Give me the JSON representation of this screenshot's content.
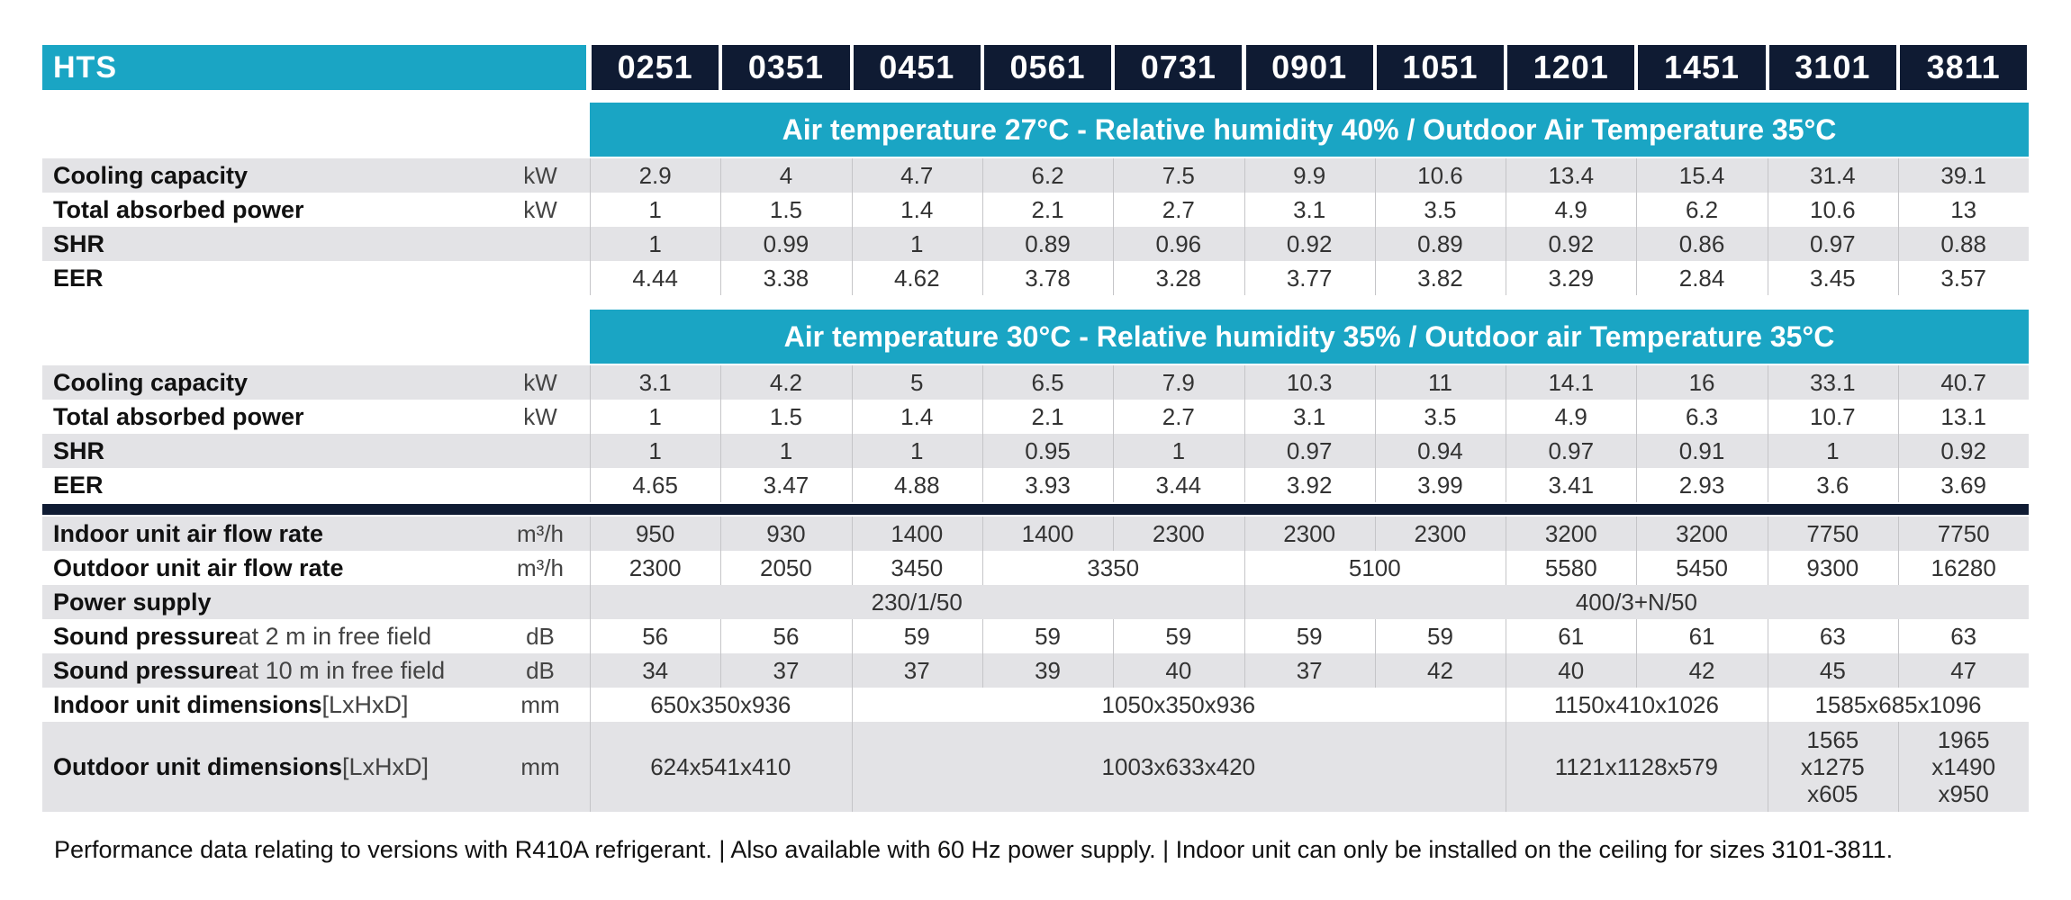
{
  "brand": "HTS",
  "models": [
    "0251",
    "0351",
    "0451",
    "0561",
    "0731",
    "0901",
    "1051",
    "1201",
    "1451",
    "3101",
    "3811"
  ],
  "sections": [
    {
      "title": "Air temperature 27°C - Relative humidity 40% / Outdoor Air Temperature 35°C",
      "rows": [
        {
          "label": "Cooling capacity",
          "unit": "kW",
          "values": [
            "2.9",
            "4",
            "4.7",
            "6.2",
            "7.5",
            "9.9",
            "10.6",
            "13.4",
            "15.4",
            "31.4",
            "39.1"
          ]
        },
        {
          "label": "Total absorbed power",
          "unit": "kW",
          "values": [
            "1",
            "1.5",
            "1.4",
            "2.1",
            "2.7",
            "3.1",
            "3.5",
            "4.9",
            "6.2",
            "10.6",
            "13"
          ]
        },
        {
          "label": "SHR",
          "unit": "",
          "values": [
            "1",
            "0.99",
            "1",
            "0.89",
            "0.96",
            "0.92",
            "0.89",
            "0.92",
            "0.86",
            "0.97",
            "0.88"
          ]
        },
        {
          "label": "EER",
          "unit": "",
          "values": [
            "4.44",
            "3.38",
            "4.62",
            "3.78",
            "3.28",
            "3.77",
            "3.82",
            "3.29",
            "2.84",
            "3.45",
            "3.57"
          ]
        }
      ]
    },
    {
      "title": "Air temperature 30°C - Relative humidity 35% / Outdoor air Temperature 35°C",
      "rows": [
        {
          "label": "Cooling capacity",
          "unit": "kW",
          "values": [
            "3.1",
            "4.2",
            "5",
            "6.5",
            "7.9",
            "10.3",
            "11",
            "14.1",
            "16",
            "33.1",
            "40.7"
          ]
        },
        {
          "label": "Total absorbed power",
          "unit": "kW",
          "values": [
            "1",
            "1.5",
            "1.4",
            "2.1",
            "2.7",
            "3.1",
            "3.5",
            "4.9",
            "6.3",
            "10.7",
            "13.1"
          ]
        },
        {
          "label": "SHR",
          "unit": "",
          "values": [
            "1",
            "1",
            "1",
            "0.95",
            "1",
            "0.97",
            "0.94",
            "0.97",
            "0.91",
            "1",
            "0.92"
          ]
        },
        {
          "label": "EER",
          "unit": "",
          "values": [
            "4.65",
            "3.47",
            "4.88",
            "3.93",
            "3.44",
            "3.92",
            "3.99",
            "3.41",
            "2.93",
            "3.6",
            "3.69"
          ]
        }
      ]
    }
  ],
  "specs": [
    {
      "label": "Indoor unit air flow rate",
      "unit": "m³/h",
      "cells": [
        {
          "value": "950",
          "span": 1
        },
        {
          "value": "930",
          "span": 1
        },
        {
          "value": "1400",
          "span": 1
        },
        {
          "value": "1400",
          "span": 1
        },
        {
          "value": "2300",
          "span": 1
        },
        {
          "value": "2300",
          "span": 1
        },
        {
          "value": "2300",
          "span": 1
        },
        {
          "value": "3200",
          "span": 1
        },
        {
          "value": "3200",
          "span": 1
        },
        {
          "value": "7750",
          "span": 1
        },
        {
          "value": "7750",
          "span": 1
        }
      ]
    },
    {
      "label": "Outdoor unit air flow rate",
      "unit": "m³/h",
      "cells": [
        {
          "value": "2300",
          "span": 1
        },
        {
          "value": "2050",
          "span": 1
        },
        {
          "value": "3450",
          "span": 1
        },
        {
          "value": "3350",
          "span": 2
        },
        {
          "value": "5100",
          "span": 2
        },
        {
          "value": "5580",
          "span": 1
        },
        {
          "value": "5450",
          "span": 1
        },
        {
          "value": "9300",
          "span": 1
        },
        {
          "value": "16280",
          "span": 1
        }
      ]
    },
    {
      "label": "Power supply",
      "unit": "",
      "cells": [
        {
          "value": "230/1/50",
          "span": 5
        },
        {
          "value": "400/3+N/50",
          "span": 6
        }
      ]
    },
    {
      "label": "Sound pressure",
      "label_rest": " at 2 m in free field",
      "unit": "dB",
      "cells": [
        {
          "value": "56",
          "span": 1
        },
        {
          "value": "56",
          "span": 1
        },
        {
          "value": "59",
          "span": 1
        },
        {
          "value": "59",
          "span": 1
        },
        {
          "value": "59",
          "span": 1
        },
        {
          "value": "59",
          "span": 1
        },
        {
          "value": "59",
          "span": 1
        },
        {
          "value": "61",
          "span": 1
        },
        {
          "value": "61",
          "span": 1
        },
        {
          "value": "63",
          "span": 1
        },
        {
          "value": "63",
          "span": 1
        }
      ]
    },
    {
      "label": "Sound pressure",
      "label_rest": " at 10 m in free field",
      "unit": "dB",
      "cells": [
        {
          "value": "34",
          "span": 1
        },
        {
          "value": "37",
          "span": 1
        },
        {
          "value": "37",
          "span": 1
        },
        {
          "value": "39",
          "span": 1
        },
        {
          "value": "40",
          "span": 1
        },
        {
          "value": "37",
          "span": 1
        },
        {
          "value": "42",
          "span": 1
        },
        {
          "value": "40",
          "span": 1
        },
        {
          "value": "42",
          "span": 1
        },
        {
          "value": "45",
          "span": 1
        },
        {
          "value": "47",
          "span": 1
        }
      ]
    },
    {
      "label": "Indoor unit dimensions",
      "label_rest": " [LxHxD]",
      "unit": "mm",
      "cells": [
        {
          "value": "650x350x936",
          "span": 2
        },
        {
          "value": "1050x350x936",
          "span": 5
        },
        {
          "value": "1150x410x1026",
          "span": 2
        },
        {
          "value": "1585x685x1096",
          "span": 2
        }
      ]
    },
    {
      "label": "Outdoor unit dimensions",
      "label_rest": " [LxHxD]",
      "unit": "mm",
      "cells": [
        {
          "value": "624x541x410",
          "span": 2
        },
        {
          "value": "1003x633x420",
          "span": 5
        },
        {
          "value": "1121x1128x579",
          "span": 2
        },
        {
          "lines": [
            "1565",
            "x1275",
            "x605"
          ],
          "span": 1
        },
        {
          "lines": [
            "1965",
            "x1490",
            "x950"
          ],
          "span": 1
        }
      ]
    }
  ],
  "footnote": "Performance data relating to versions with R410A refrigerant. | Also available with 60 Hz power supply. | Indoor unit can only be installed on the ceiling for sizes 3101-3811."
}
